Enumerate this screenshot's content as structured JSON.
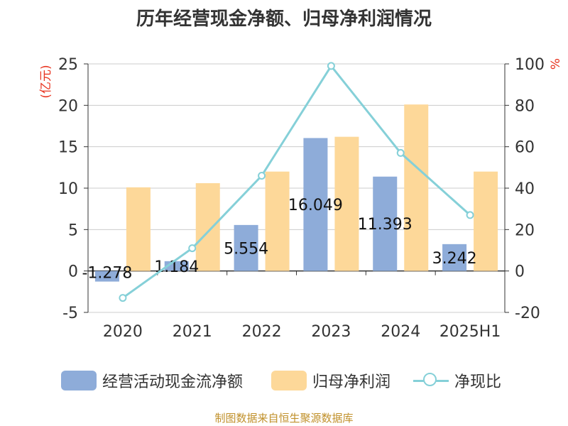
{
  "title": "历年经营现金净额、归母净利润情况",
  "source_note": "制图数据来自恒生聚源数据库",
  "colors": {
    "cash_flow": "#8eacd9",
    "net_profit": "#fdd899",
    "ratio": "#85d0d8",
    "axis_label": "#e8321e",
    "grid": "#cccccc",
    "axis": "#333333",
    "text": "#333333"
  },
  "chart_data": {
    "type": "bar",
    "title": "历年经营现金净额、归母净利润情况",
    "categories": [
      "2020",
      "2021",
      "2022",
      "2023",
      "2024",
      "2025H1"
    ],
    "left_axis": {
      "label": "(亿元)",
      "range": [
        -5,
        25
      ],
      "ticks": [
        -5,
        0,
        5,
        10,
        15,
        20,
        25
      ]
    },
    "right_axis": {
      "label": "%",
      "range": [
        -20,
        100
      ],
      "ticks": [
        -20,
        0,
        20,
        40,
        60,
        80,
        100
      ]
    },
    "grid": true,
    "legend_position": "bottom",
    "series": [
      {
        "name": "经营活动现金流净额",
        "type": "bar",
        "axis": "left",
        "values": [
          -1.278,
          1.184,
          5.554,
          16.049,
          11.393,
          3.242
        ],
        "labels": [
          "-1.278",
          "1.184",
          "5.554",
          "16.049",
          "11.393",
          "3.242"
        ]
      },
      {
        "name": "归母净利润",
        "type": "bar",
        "axis": "left",
        "values": [
          10.1,
          10.6,
          12.0,
          16.2,
          20.1,
          12.0
        ]
      },
      {
        "name": "净现比",
        "type": "line",
        "axis": "right",
        "values": [
          -13,
          11,
          46,
          99,
          57,
          27
        ]
      }
    ]
  }
}
